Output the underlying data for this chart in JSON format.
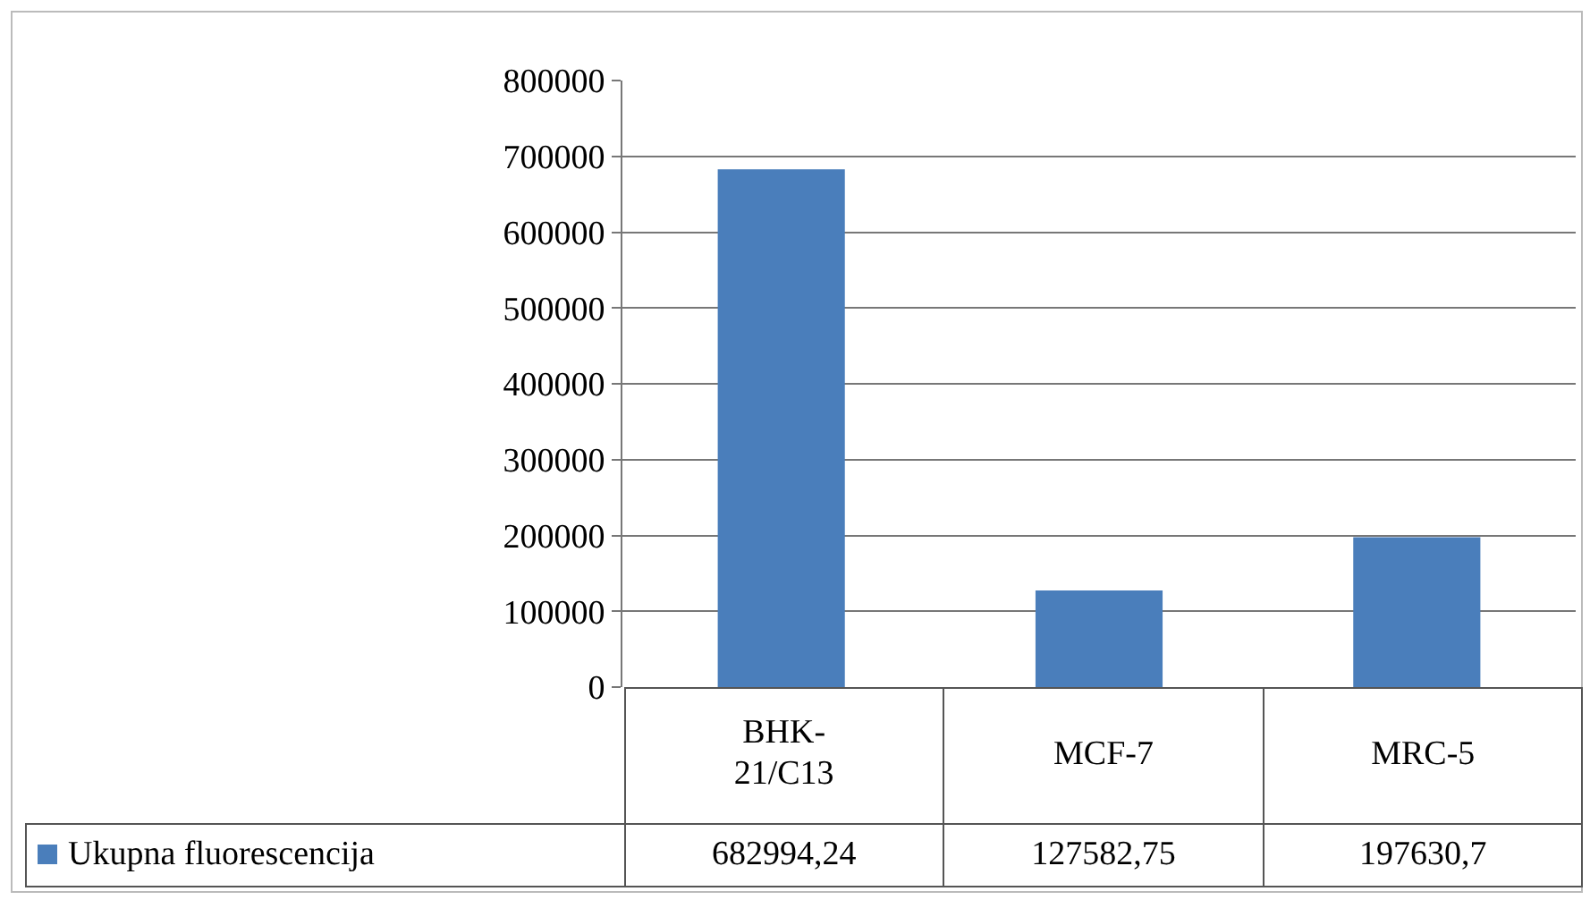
{
  "chart_data": {
    "type": "bar",
    "categories": [
      "BHK-21/C13",
      "MCF-7",
      "MRC-5"
    ],
    "series": [
      {
        "name": "Ukupna fluorescencija",
        "color": "#4a7ebb",
        "values": [
          682994.24,
          127582.75,
          197630.7
        ],
        "value_labels": [
          "682994,24",
          "127582,75",
          "197630,7"
        ]
      }
    ],
    "ylim": [
      0,
      800000
    ],
    "yticks": [
      0,
      100000,
      200000,
      300000,
      400000,
      500000,
      600000,
      700000,
      800000
    ],
    "grid": "y",
    "tick_labels": "y"
  }
}
